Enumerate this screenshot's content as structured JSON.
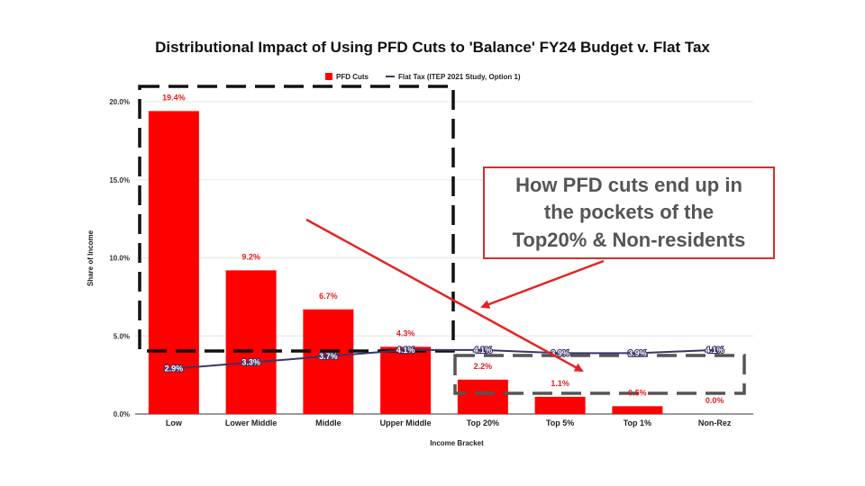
{
  "chart_data": {
    "type": "bar",
    "title": "Distributional Impact of Using PFD Cuts to 'Balance' FY24 Budget v. Flat Tax",
    "xlabel": "Income Bracket",
    "ylabel": "Share of Income",
    "ylim": [
      0,
      20
    ],
    "yticks": [
      "0.0%",
      "5.0%",
      "10.0%",
      "15.0%",
      "20.0%"
    ],
    "grid": true,
    "legend_position": "top-center",
    "categories": [
      "Low",
      "Lower Middle",
      "Middle",
      "Upper Middle",
      "Top 20%",
      "Top 5%",
      "Top 1%",
      "Non-Rez"
    ],
    "series": [
      {
        "name": "PFD Cuts",
        "kind": "bar",
        "color": "#ff0000",
        "values": [
          19.4,
          9.2,
          6.7,
          4.3,
          2.2,
          1.1,
          0.5,
          0.0
        ],
        "labels": [
          "19.4%",
          "9.2%",
          "6.7%",
          "4.3%",
          "2.2%",
          "1.1%",
          "0.5%",
          "0.0%"
        ]
      },
      {
        "name": "Flat Tax (ITEP 2021 Study, Option 1)",
        "kind": "line",
        "color": "#3a3566",
        "values": [
          2.9,
          3.3,
          3.7,
          4.1,
          4.1,
          3.9,
          3.9,
          4.1
        ],
        "labels": [
          "2.9%",
          "3.3%",
          "3.7%",
          "4.1%",
          "4.1%",
          "3.9%",
          "3.9%",
          "4.1%"
        ]
      }
    ],
    "annotations": {
      "callout_lines": [
        "How PFD cuts end up in",
        "the pockets of the",
        "Top20% & Non-residents"
      ],
      "callout_color": "#d32f2f"
    }
  }
}
